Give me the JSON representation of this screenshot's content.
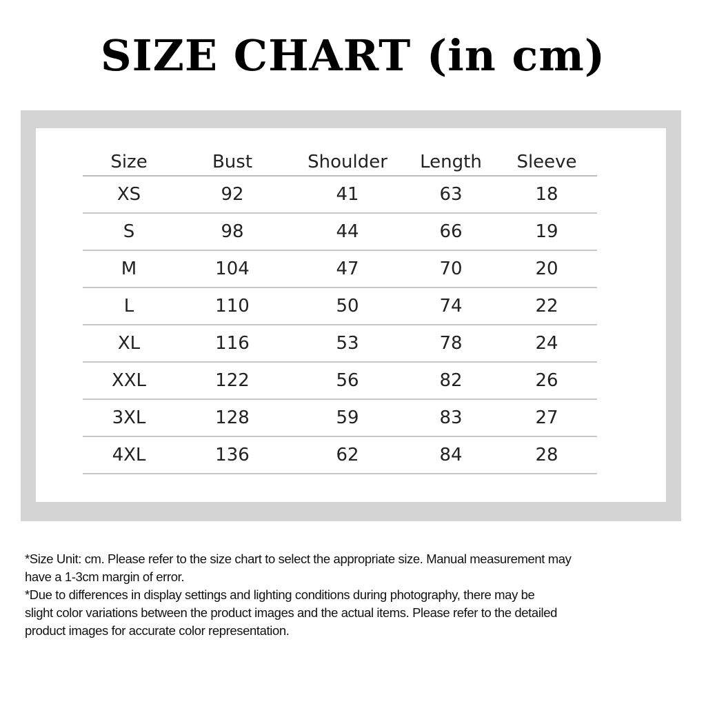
{
  "title": "SIZE CHART (in cm)",
  "table": {
    "headers": [
      "Size",
      "Bust",
      "Shoulder",
      "Length",
      "Sleeve"
    ],
    "rows": [
      [
        "XS",
        "92",
        "41",
        "63",
        "18"
      ],
      [
        "S",
        "98",
        "44",
        "66",
        "19"
      ],
      [
        "M",
        "104",
        "47",
        "70",
        "20"
      ],
      [
        "L",
        "110",
        "50",
        "74",
        "22"
      ],
      [
        "XL",
        "116",
        "53",
        "78",
        "24"
      ],
      [
        "XXL",
        "122",
        "56",
        "82",
        "26"
      ],
      [
        "3XL",
        "128",
        "59",
        "83",
        "27"
      ],
      [
        "4XL",
        "136",
        "62",
        "84",
        "28"
      ]
    ]
  },
  "notes": {
    "lines": [
      "*Size Unit: cm. Please refer to the size chart to select the appropriate size. Manual measurement may",
      "have a 1-3cm margin of error.",
      "*Due to differences in display settings and lighting conditions during photography, there may be",
      "slight color variations between the product images and the actual items. Please refer to the detailed",
      "product images for accurate color representation."
    ]
  }
}
